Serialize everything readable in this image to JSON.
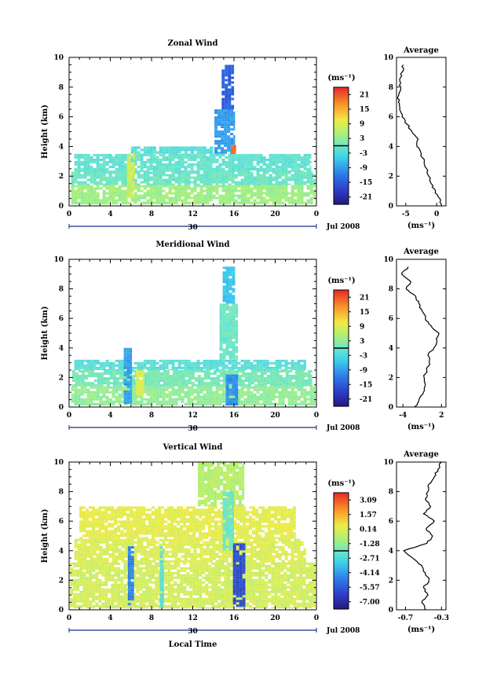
{
  "chart_data": [
    {
      "type": "heatmap",
      "title": "Zonal Wind",
      "ylabel": "Height (km)",
      "xlabel": "",
      "ylim": [
        0,
        10
      ],
      "xlim": [
        0,
        24
      ],
      "x_ticks": [
        "0",
        "4",
        "8",
        "12",
        "16",
        "20",
        "0"
      ],
      "y_ticks": [
        "0",
        "2",
        "4",
        "6",
        "8",
        "10"
      ],
      "date_labels": [
        "30",
        "Jul 2008"
      ],
      "colorbar": {
        "unit": "(ms⁻¹)",
        "ticks": [
          "21",
          "15",
          "9",
          "3",
          "-3",
          "-9",
          "-15",
          "-21"
        ],
        "range": [
          -24,
          24
        ]
      },
      "data_regions": [
        {
          "t0": 0.2,
          "t1": 23.9,
          "h0": 0.1,
          "h1": 1.4,
          "value": 4
        },
        {
          "t0": 0.2,
          "t1": 23.9,
          "h0": 1.4,
          "h1": 2.3,
          "value": 0
        },
        {
          "t0": 0.5,
          "t1": 23.5,
          "h0": 2.3,
          "h1": 3.5,
          "value": -1
        },
        {
          "t0": 6.0,
          "t1": 14.0,
          "h0": 3.5,
          "h1": 4.0,
          "value": -2
        },
        {
          "t0": 14.1,
          "t1": 16.1,
          "h0": 3.5,
          "h1": 6.5,
          "value": -9
        },
        {
          "t0": 14.8,
          "t1": 16.0,
          "h0": 6.5,
          "h1": 9.5,
          "value": -14
        },
        {
          "t0": 5.6,
          "t1": 6.4,
          "h0": 0.5,
          "h1": 3.6,
          "value": 7
        },
        {
          "t0": 15.7,
          "t1": 16.2,
          "h0": 3.5,
          "h1": 4.1,
          "value": 19
        }
      ],
      "average_profile": {
        "title": "Average",
        "xlabel": "(ms⁻¹)",
        "x_ticks": [
          "-5",
          "0"
        ],
        "xlim": [
          -6.5,
          1.5
        ],
        "heights": [
          0,
          0.5,
          1,
          1.5,
          2,
          2.5,
          3,
          3.5,
          4,
          4.5,
          5,
          5.5,
          6,
          6.5,
          7,
          7.5,
          8,
          8.5,
          9,
          9.5
        ],
        "values": [
          0.8,
          0.5,
          -0.2,
          -0.9,
          -1.3,
          -1.6,
          -2.0,
          -2.5,
          -3.2,
          -3.0,
          -4.0,
          -4.8,
          -5.6,
          -6.0,
          -6.2,
          -6.1,
          -5.8,
          -6.0,
          -5.6,
          -5.4
        ]
      }
    },
    {
      "type": "heatmap",
      "title": "Meridional Wind",
      "ylabel": "Height (km)",
      "xlabel": "",
      "ylim": [
        0,
        10
      ],
      "xlim": [
        0,
        24
      ],
      "x_ticks": [
        "0",
        "4",
        "8",
        "12",
        "16",
        "20",
        "0"
      ],
      "y_ticks": [
        "0",
        "2",
        "4",
        "6",
        "8",
        "10"
      ],
      "date_labels": [
        "30",
        "Jul 2008"
      ],
      "colorbar": {
        "unit": "(ms⁻¹)",
        "ticks": [
          "21",
          "15",
          "9",
          "3",
          "-3",
          "-9",
          "-15",
          "-21"
        ],
        "range": [
          -24,
          24
        ]
      },
      "data_regions": [
        {
          "t0": 0.2,
          "t1": 23.9,
          "h0": 0.1,
          "h1": 1.4,
          "value": 3
        },
        {
          "t0": 0.3,
          "t1": 23.6,
          "h0": 1.4,
          "h1": 2.5,
          "value": 1
        },
        {
          "t0": 0.5,
          "t1": 23.0,
          "h0": 2.5,
          "h1": 3.2,
          "value": -2
        },
        {
          "t0": 14.6,
          "t1": 16.4,
          "h0": 3.2,
          "h1": 7.0,
          "value": 0
        },
        {
          "t0": 14.9,
          "t1": 16.1,
          "h0": 7.0,
          "h1": 9.5,
          "value": -6
        },
        {
          "t0": 5.3,
          "t1": 6.1,
          "h0": 0.2,
          "h1": 4.0,
          "value": -9
        },
        {
          "t0": 15.2,
          "t1": 16.4,
          "h0": 0.1,
          "h1": 2.2,
          "value": -10
        },
        {
          "t0": 6.5,
          "t1": 7.3,
          "h0": 0.8,
          "h1": 2.5,
          "value": 9
        }
      ],
      "average_profile": {
        "title": "Average",
        "xlabel": "(ms⁻¹)",
        "x_ticks": [
          "-4",
          "2"
        ],
        "xlim": [
          -5,
          2.7
        ],
        "heights": [
          0,
          0.5,
          1,
          1.5,
          2,
          2.5,
          3,
          3.5,
          4,
          4.5,
          5,
          5.5,
          6,
          6.5,
          7,
          7.5,
          8,
          8.5,
          9,
          9.5
        ],
        "values": [
          -2.2,
          -1.5,
          -0.8,
          -0.5,
          -0.7,
          -0.3,
          0.1,
          -0.1,
          0.8,
          1.3,
          1.6,
          0.4,
          -0.5,
          -1.0,
          -1.5,
          -2.0,
          -3.5,
          -2.8,
          -4.2,
          -3.2
        ]
      }
    },
    {
      "type": "heatmap",
      "title": "Vertical Wind",
      "ylabel": "Height (km)",
      "xlabel": "Local Time",
      "ylim": [
        0,
        10
      ],
      "xlim": [
        0,
        24
      ],
      "x_ticks": [
        "0",
        "4",
        "8",
        "12",
        "16",
        "20",
        "0"
      ],
      "y_ticks": [
        "0",
        "2",
        "4",
        "6",
        "8",
        "10"
      ],
      "date_labels": [
        "30",
        "Jul 2008"
      ],
      "colorbar": {
        "unit": "(ms⁻¹)",
        "ticks": [
          "3.09",
          "1.57",
          "0.14",
          "-1.28",
          "-2.71",
          "-4.14",
          "-5.57",
          "-7.00"
        ],
        "range": [
          -8.5,
          4.5
        ]
      },
      "data_regions": [
        {
          "t0": 0.1,
          "t1": 23.9,
          "h0": 0.1,
          "h1": 3.2,
          "value": 0.2
        },
        {
          "t0": 0.5,
          "t1": 23.0,
          "h0": 3.2,
          "h1": 4.8,
          "value": 0.4
        },
        {
          "t0": 1.0,
          "t1": 22.0,
          "h0": 4.8,
          "h1": 7.0,
          "value": 0.6
        },
        {
          "t0": 12.5,
          "t1": 17.0,
          "h0": 7.0,
          "h1": 10.0,
          "value": -0.4
        },
        {
          "t0": 14.9,
          "t1": 16.0,
          "h0": 4.0,
          "h1": 8.0,
          "value": -2.0
        },
        {
          "t0": 15.9,
          "t1": 17.1,
          "h0": 0.2,
          "h1": 4.5,
          "value": -6.5
        },
        {
          "t0": 5.7,
          "t1": 6.3,
          "h0": 0.3,
          "h1": 4.3,
          "value": -5.0
        },
        {
          "t0": 8.8,
          "t1": 9.2,
          "h0": 0.2,
          "h1": 4.3,
          "value": -2.5
        }
      ],
      "average_profile": {
        "title": "Average",
        "xlabel": "(ms⁻¹)",
        "x_ticks": [
          "-0.7",
          "-0.3"
        ],
        "xlim": [
          -0.8,
          -0.25
        ],
        "heights": [
          0,
          0.5,
          1,
          1.5,
          2,
          2.5,
          3,
          3.5,
          4,
          4.5,
          5,
          5.5,
          6,
          6.5,
          7,
          7.5,
          8,
          8.5,
          9,
          9.5,
          10
        ],
        "values": [
          -0.48,
          -0.52,
          -0.45,
          -0.5,
          -0.44,
          -0.48,
          -0.52,
          -0.62,
          -0.72,
          -0.46,
          -0.4,
          -0.47,
          -0.38,
          -0.5,
          -0.42,
          -0.48,
          -0.45,
          -0.44,
          -0.38,
          -0.34,
          -0.3
        ]
      }
    }
  ]
}
